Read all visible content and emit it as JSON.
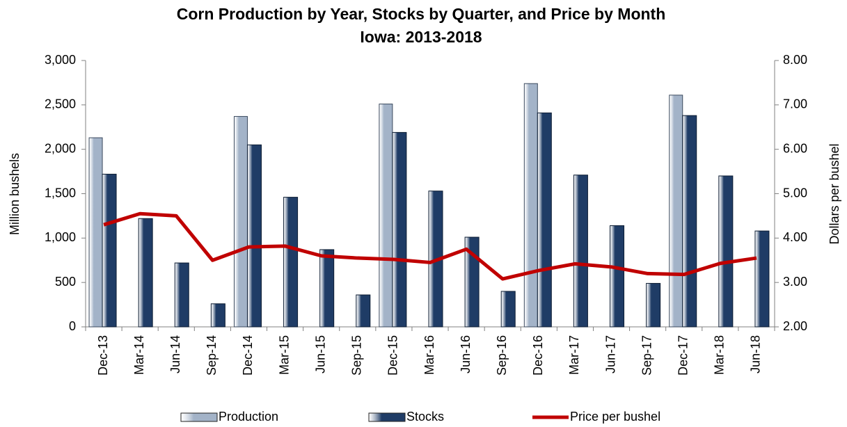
{
  "chart_data": {
    "type": "bar-line",
    "title": "Corn Production by Year,  Stocks by Quarter, and Price by Month",
    "subtitle": "Iowa:  2013-2018",
    "y_label": "Million bushels",
    "y2_label": "Dollars per bushel",
    "categories": [
      "Dec-13",
      "Mar-14",
      "Jun-14",
      "Sep-14",
      "Dec-14",
      "Mar-15",
      "Jun-15",
      "Sep-15",
      "Dec-15",
      "Mar-16",
      "Jun-16",
      "Sep-16",
      "Dec-16",
      "Mar-17",
      "Jun-17",
      "Sep-17",
      "Dec-17",
      "Mar-18",
      "Jun-18"
    ],
    "series": [
      {
        "name": "Production",
        "type": "bar",
        "color": "#a3b3c8",
        "values": [
          2130,
          null,
          null,
          null,
          2370,
          null,
          null,
          null,
          2510,
          null,
          null,
          null,
          2740,
          null,
          null,
          null,
          2610,
          null,
          null
        ]
      },
      {
        "name": "Stocks",
        "type": "bar",
        "color": "#1f3c66",
        "values": [
          1720,
          1220,
          720,
          260,
          2050,
          1460,
          870,
          360,
          2190,
          1530,
          1010,
          400,
          2410,
          1710,
          1140,
          490,
          2380,
          1700,
          1080
        ]
      },
      {
        "name": "Price per bushel",
        "type": "line",
        "axis": "y2",
        "color": "#c00000",
        "values": [
          4.3,
          4.55,
          4.5,
          3.5,
          3.8,
          3.82,
          3.6,
          3.55,
          3.52,
          3.45,
          3.75,
          3.08,
          3.27,
          3.42,
          3.35,
          3.2,
          3.18,
          3.43,
          3.55
        ]
      }
    ],
    "ylim": [
      0,
      3000
    ],
    "yticks": [
      0,
      500,
      {
        "value": 1000,
        "label": "1,000"
      },
      {
        "value": 1500,
        "label": "1,500"
      },
      {
        "value": 2000,
        "label": "2,000"
      },
      {
        "value": 2500,
        "label": "2,500"
      },
      {
        "value": 3000,
        "label": "3,000"
      }
    ],
    "y2lim": [
      2,
      8
    ],
    "y2ticks": [
      {
        "value": 2,
        "label": "2.00"
      },
      {
        "value": 3,
        "label": "3.00"
      },
      {
        "value": 4,
        "label": "4.00"
      },
      {
        "value": 5,
        "label": "5.00"
      },
      {
        "value": 6,
        "label": "6.00"
      },
      {
        "value": 7,
        "label": "7.00"
      },
      {
        "value": 8,
        "label": "8.00"
      }
    ],
    "grid": false,
    "legend": "bottom"
  }
}
